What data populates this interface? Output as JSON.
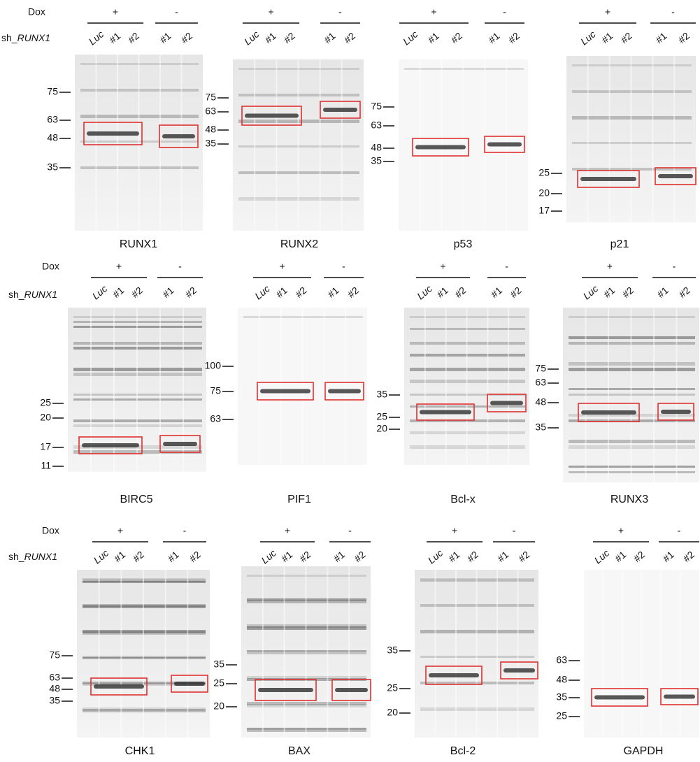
{
  "labels": {
    "dox": "Dox",
    "sh_prefix": "sh_",
    "sh_gene": "RUNX1",
    "plus": "+",
    "minus": "-",
    "lanes": [
      "Luc",
      "#1",
      "#2",
      "#1",
      "#2"
    ]
  },
  "panels": [
    {
      "name": "RUNX1",
      "markers": [
        "75",
        "63",
        "48",
        "35"
      ]
    },
    {
      "name": "RUNX2",
      "markers": [
        "75",
        "63",
        "48",
        "35"
      ]
    },
    {
      "name": "p53",
      "markers": [
        "75",
        "63",
        "48",
        "35"
      ]
    },
    {
      "name": "p21",
      "markers": [
        "25",
        "20",
        "17"
      ]
    },
    {
      "name": "BIRC5",
      "markers": [
        "25",
        "20",
        "17",
        "11"
      ]
    },
    {
      "name": "PIF1",
      "markers": [
        "100",
        "75",
        "63"
      ]
    },
    {
      "name": "Bcl-x",
      "markers": [
        "35",
        "25",
        "20"
      ]
    },
    {
      "name": "RUNX3",
      "markers": [
        "75",
        "63",
        "48",
        "35"
      ]
    },
    {
      "name": "CHK1",
      "markers": [
        "75",
        "63",
        "48",
        "35"
      ]
    },
    {
      "name": "BAX",
      "markers": [
        "35",
        "25",
        "20"
      ]
    },
    {
      "name": "Bcl-2",
      "markers": [
        "35",
        "25",
        "20"
      ]
    },
    {
      "name": "GAPDH",
      "markers": [
        "63",
        "48",
        "35",
        "25"
      ]
    }
  ]
}
